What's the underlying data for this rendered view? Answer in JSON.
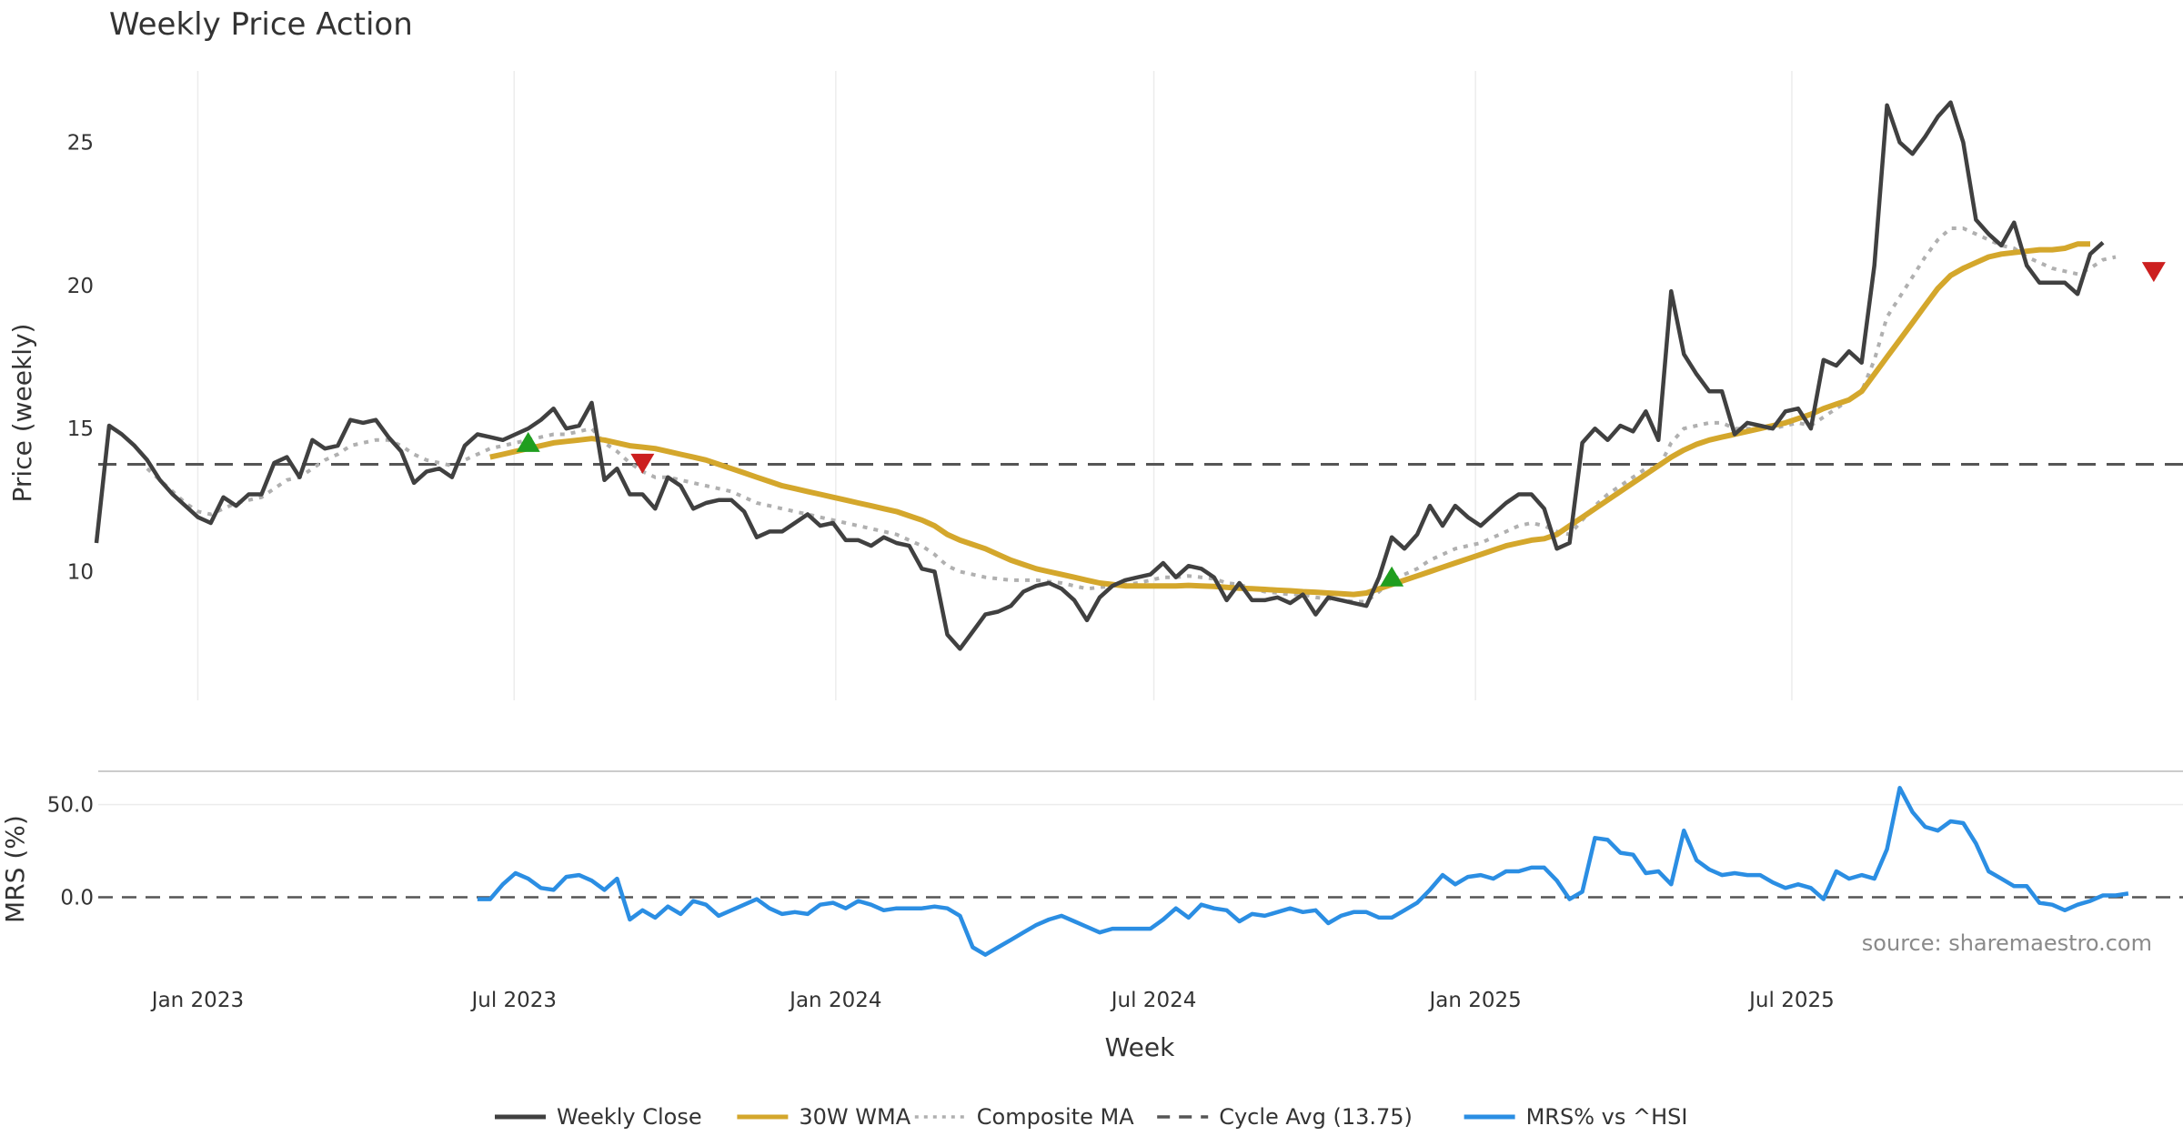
{
  "chart_data": [
    {
      "type": "line",
      "title": "Weekly Price Action",
      "xlabel": "Week",
      "ylabel": "Price (weekly)",
      "ylim": [
        5.5,
        27.5
      ],
      "yticks": [
        10,
        15,
        20,
        25
      ],
      "xticks": [
        {
          "date": "2023-01-01",
          "label": "Jan 2023"
        },
        {
          "date": "2023-07-01",
          "label": "Jul 2023"
        },
        {
          "date": "2024-01-01",
          "label": "Jan 2024"
        },
        {
          "date": "2024-07-01",
          "label": "Jul 2024"
        },
        {
          "date": "2025-01-01",
          "label": "Jan 2025"
        },
        {
          "date": "2025-07-01",
          "label": "Jul 2025"
        }
      ],
      "x_start": "2022-11-04",
      "x_end": "2025-12-26",
      "grid": "vertical",
      "weekly_close": [
        11.0,
        15.1,
        14.8,
        14.4,
        13.9,
        13.2,
        12.7,
        12.3,
        11.9,
        11.7,
        12.6,
        12.3,
        12.7,
        12.7,
        13.8,
        14.0,
        13.3,
        14.6,
        14.3,
        14.4,
        15.3,
        15.2,
        15.3,
        14.7,
        14.2,
        13.1,
        13.5,
        13.6,
        13.3,
        14.4,
        14.8,
        14.7,
        14.6,
        14.8,
        15.0,
        15.3,
        15.7,
        15.0,
        15.1,
        15.9,
        13.2,
        13.6,
        12.7,
        12.7,
        12.2,
        13.3,
        13.0,
        12.2,
        12.4,
        12.5,
        12.5,
        12.1,
        11.2,
        11.4,
        11.4,
        11.7,
        12.0,
        11.6,
        11.7,
        11.1,
        11.1,
        10.9,
        11.2,
        11.0,
        10.9,
        10.1,
        10.0,
        7.8,
        7.3,
        7.9,
        8.5,
        8.6,
        8.8,
        9.3,
        9.5,
        9.6,
        9.4,
        9.0,
        8.3,
        9.1,
        9.5,
        9.7,
        9.8,
        9.9,
        10.3,
        9.8,
        10.2,
        10.1,
        9.8,
        9.0,
        9.6,
        9.0,
        9.0,
        9.1,
        8.9,
        9.2,
        8.5,
        9.1,
        9.0,
        8.9,
        8.8,
        9.8,
        11.2,
        10.8,
        11.3,
        12.3,
        11.6,
        12.3,
        11.9,
        11.6,
        12.0,
        12.4,
        12.7,
        12.7,
        12.2,
        10.8,
        11.0,
        14.5,
        15.0,
        14.6,
        15.1,
        14.9,
        15.6,
        14.6,
        19.8,
        17.6,
        16.9,
        16.3,
        16.3,
        14.8,
        15.2,
        15.1,
        15.0,
        15.6,
        15.7,
        15.0,
        17.4,
        17.2,
        17.7,
        17.3,
        20.7,
        26.3,
        25.0,
        24.6,
        25.2,
        25.9,
        26.4,
        25.0,
        22.3,
        21.8,
        21.4,
        22.2,
        20.7,
        20.1,
        20.1,
        20.1,
        19.7,
        21.1,
        21.5
      ],
      "wma_30w": [
        null,
        null,
        null,
        null,
        null,
        null,
        null,
        null,
        null,
        null,
        null,
        null,
        null,
        null,
        null,
        null,
        null,
        null,
        null,
        null,
        null,
        null,
        null,
        null,
        null,
        null,
        null,
        null,
        null,
        null,
        null,
        14.0,
        14.1,
        14.2,
        14.3,
        14.4,
        14.5,
        14.55,
        14.6,
        14.65,
        14.6,
        14.5,
        14.4,
        14.35,
        14.3,
        14.2,
        14.1,
        14.0,
        13.9,
        13.75,
        13.6,
        13.45,
        13.3,
        13.15,
        13.0,
        12.9,
        12.8,
        12.7,
        12.6,
        12.5,
        12.4,
        12.3,
        12.2,
        12.1,
        11.95,
        11.8,
        11.6,
        11.3,
        11.1,
        10.95,
        10.8,
        10.6,
        10.4,
        10.25,
        10.1,
        10.0,
        9.9,
        9.8,
        9.7,
        9.6,
        9.55,
        9.5,
        9.5,
        9.5,
        9.5,
        9.5,
        9.52,
        9.5,
        9.48,
        9.45,
        9.42,
        9.4,
        9.38,
        9.35,
        9.33,
        9.3,
        9.28,
        9.25,
        9.23,
        9.2,
        9.25,
        9.4,
        9.55,
        9.7,
        9.85,
        10.0,
        10.15,
        10.3,
        10.45,
        10.6,
        10.75,
        10.9,
        11.0,
        11.1,
        11.15,
        11.3,
        11.6,
        11.9,
        12.2,
        12.5,
        12.8,
        13.1,
        13.4,
        13.7,
        14.0,
        14.25,
        14.45,
        14.6,
        14.7,
        14.8,
        14.9,
        15.0,
        15.1,
        15.2,
        15.35,
        15.5,
        15.7,
        15.85,
        16.0,
        16.3,
        16.9,
        17.5,
        18.1,
        18.7,
        19.3,
        19.9,
        20.35,
        20.6,
        20.8,
        21.0,
        21.1,
        21.15,
        21.2,
        21.25,
        21.25,
        21.3,
        21.45,
        21.45
      ],
      "composite_ma": [
        null,
        null,
        null,
        null,
        13.6,
        13.2,
        12.8,
        12.4,
        12.1,
        12.0,
        12.2,
        12.4,
        12.5,
        12.6,
        12.9,
        13.2,
        13.3,
        13.6,
        13.9,
        14.1,
        14.4,
        14.5,
        14.6,
        14.6,
        14.4,
        14.1,
        13.9,
        13.8,
        13.7,
        13.9,
        14.1,
        14.3,
        14.4,
        14.5,
        14.6,
        14.7,
        14.8,
        14.8,
        14.9,
        15.0,
        14.5,
        14.2,
        13.8,
        13.5,
        13.3,
        13.3,
        13.2,
        13.1,
        13.0,
        12.9,
        12.8,
        12.6,
        12.4,
        12.3,
        12.2,
        12.1,
        12.0,
        11.9,
        11.8,
        11.7,
        11.6,
        11.5,
        11.4,
        11.3,
        11.1,
        10.9,
        10.6,
        10.2,
        10.0,
        9.9,
        9.8,
        9.75,
        9.7,
        9.7,
        9.7,
        9.65,
        9.6,
        9.5,
        9.4,
        9.45,
        9.5,
        9.55,
        9.6,
        9.7,
        9.8,
        9.8,
        9.85,
        9.8,
        9.75,
        9.6,
        9.55,
        9.4,
        9.3,
        9.25,
        9.2,
        9.2,
        9.1,
        9.05,
        9.0,
        8.95,
        8.95,
        9.3,
        9.7,
        9.9,
        10.1,
        10.4,
        10.6,
        10.8,
        10.9,
        11.0,
        11.2,
        11.4,
        11.6,
        11.7,
        11.6,
        11.4,
        11.3,
        11.8,
        12.3,
        12.7,
        13.0,
        13.3,
        13.6,
        13.6,
        14.5,
        15.0,
        15.1,
        15.2,
        15.2,
        15.0,
        15.0,
        15.0,
        15.0,
        15.1,
        15.2,
        15.1,
        15.4,
        15.7,
        16.0,
        16.3,
        17.4,
        18.9,
        19.6,
        20.3,
        21.0,
        21.6,
        22.0,
        22.0,
        21.8,
        21.6,
        21.4,
        21.3,
        21.0,
        20.8,
        20.6,
        20.5,
        20.4,
        20.6,
        20.9,
        21.0
      ],
      "buy_signals": [
        {
          "index": 34,
          "value": 14.5
        },
        {
          "index": 102,
          "value": 9.8
        }
      ],
      "sell_signals": [
        {
          "index": 43,
          "value": 13.8
        },
        {
          "index": 162,
          "value": 20.5
        }
      ],
      "cycle_avg": 13.75
    },
    {
      "type": "line",
      "ylabel": "MRS (%)",
      "ylim": [
        -40,
        68
      ],
      "yticks": [
        {
          "value": 0,
          "label": "0.0"
        },
        {
          "value": 50,
          "label": "50.0"
        }
      ],
      "zero_line": 0,
      "mrs_start_index": 30,
      "mrs": [
        -1,
        -1,
        7,
        13,
        10,
        5,
        4,
        11,
        12,
        9,
        4,
        10,
        -12,
        -7,
        -11,
        -5,
        -9,
        -2,
        -4,
        -10,
        -7,
        -4,
        -1,
        -6,
        -9,
        -8,
        -9,
        -4,
        -3,
        -6,
        -2,
        -4,
        -7,
        -6,
        -6,
        -6,
        -5,
        -6,
        -10,
        -27,
        -31,
        -27,
        -23,
        -19,
        -15,
        -12,
        -10,
        -13,
        -16,
        -19,
        -17,
        -17,
        -17,
        -17,
        -12,
        -6,
        -11,
        -4,
        -6,
        -7,
        -13,
        -9,
        -10,
        -8,
        -6,
        -8,
        -7,
        -14,
        -10,
        -8,
        -8,
        -11,
        -11,
        -7,
        -3,
        4,
        12,
        7,
        11,
        12,
        10,
        14,
        14,
        16,
        16,
        9,
        -1,
        3,
        32,
        31,
        24,
        23,
        13,
        14,
        7,
        36,
        20,
        15,
        12,
        13,
        12,
        12,
        8,
        5,
        7,
        5,
        -1,
        14,
        10,
        12,
        10,
        26,
        59,
        46,
        38,
        36,
        41,
        40,
        29,
        14,
        10,
        6,
        6,
        -3,
        -4,
        -7,
        -4,
        -2,
        1,
        1,
        2
      ]
    }
  ],
  "legend": [
    {
      "label": "Weekly Close",
      "color": "#404040",
      "style": "solid"
    },
    {
      "label": "30W WMA",
      "color": "#d4a72c",
      "style": "solid"
    },
    {
      "label": "Composite MA",
      "color": "#b0b0b0",
      "style": "dotted"
    },
    {
      "label": "Cycle Avg (13.75)",
      "color": "#555555",
      "style": "dashed"
    },
    {
      "label": "MRS% vs ^HSI",
      "color": "#2b8ee3",
      "style": "solid"
    }
  ],
  "source": "source: sharemaestro.com"
}
